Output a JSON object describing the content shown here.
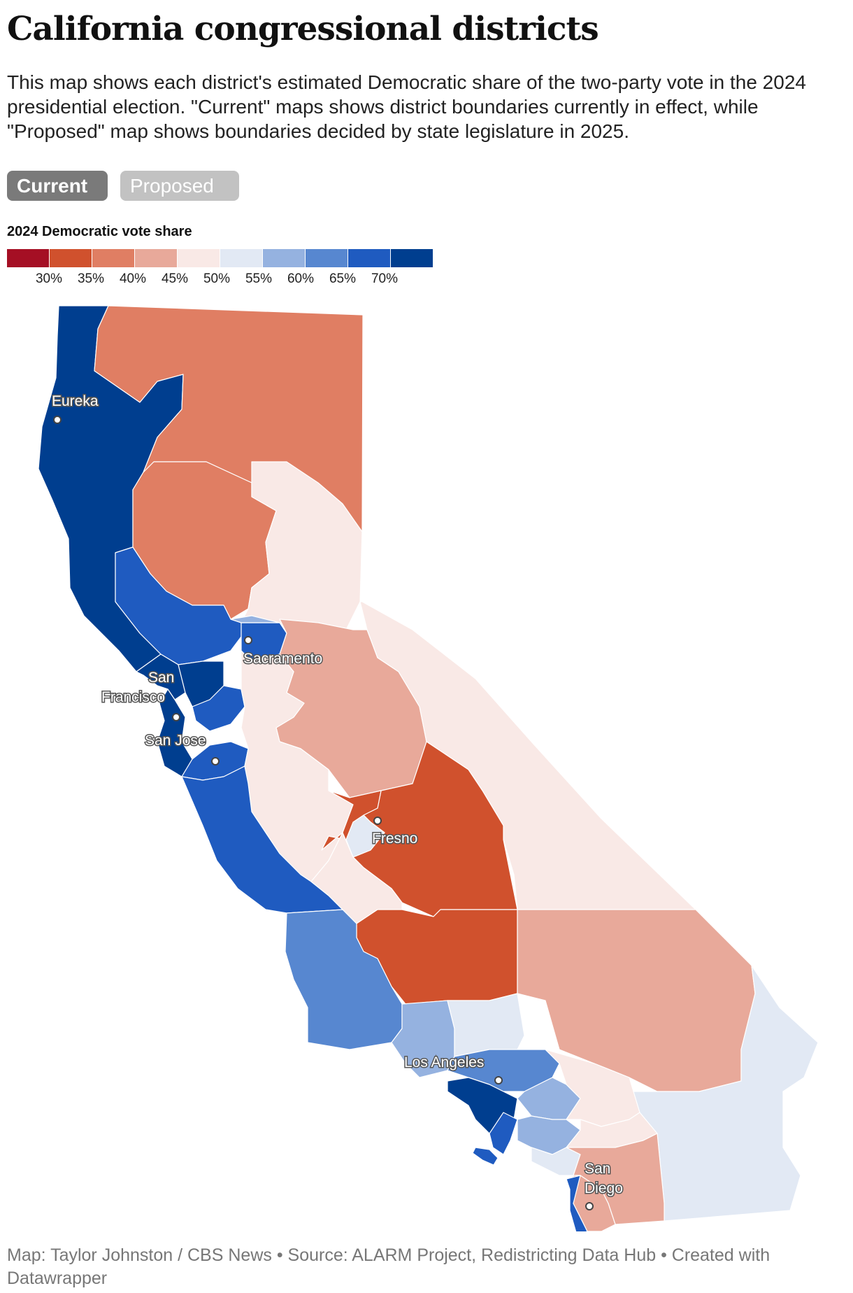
{
  "title": "California congressional districts",
  "description": "This map shows each district's estimated Democratic share of the two-party vote in the 2024 presidential election. \"Current\" maps shows district boundaries currently in effect, while \"Proposed\" map shows boundaries decided by state legislature in 2025.",
  "toggles": {
    "current": "Current",
    "proposed": "Proposed",
    "selected": "Current"
  },
  "legend": {
    "title": "2024 Democratic vote share",
    "colors": [
      "#a50f24",
      "#d0512d",
      "#e07e63",
      "#e8a99a",
      "#f9e9e6",
      "#e2e9f4",
      "#95b2e0",
      "#5787d0",
      "#1f5bc0",
      "#003e8f"
    ],
    "ticks": [
      "30%",
      "35%",
      "40%",
      "45%",
      "50%",
      "55%",
      "60%",
      "65%",
      "70%"
    ]
  },
  "cities": {
    "eureka": "Eureka",
    "sacramento": "Sacramento",
    "san_francisco_1": "San",
    "san_francisco_2": "Francisco",
    "san_jose": "San Jose",
    "fresno": "Fresno",
    "los_angeles": "Los Angeles",
    "san_diego_1": "San",
    "san_diego_2": "Diego"
  },
  "footer": "Map: Taylor Johnston / CBS News • Source: ALARM Project, Redistricting Data Hub • Created with Datawrapper"
}
